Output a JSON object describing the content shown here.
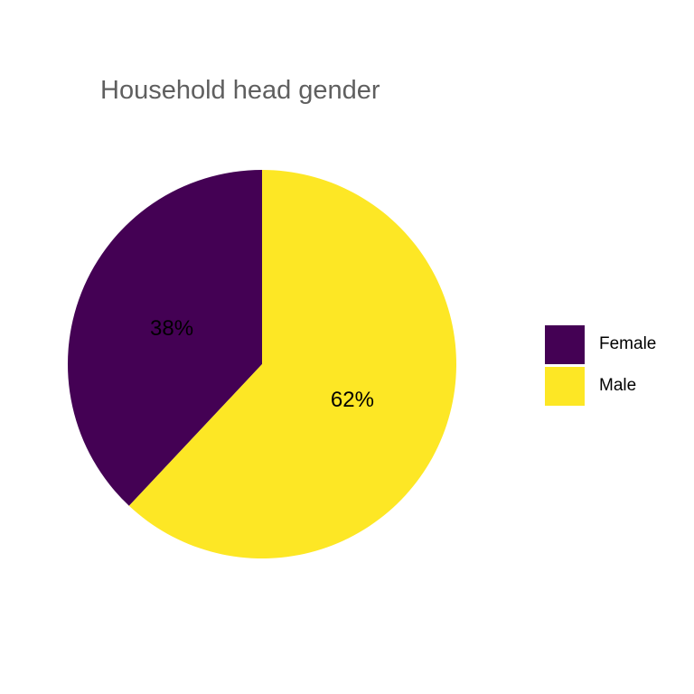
{
  "chart_data": {
    "type": "pie",
    "title": "Household head gender",
    "categories": [
      "Female",
      "Male"
    ],
    "values": [
      38,
      62
    ],
    "labels": [
      "38%",
      "62%"
    ],
    "colors": [
      "#440154",
      "#FDE725"
    ],
    "start": "12 o'clock",
    "direction": "counterclockwise",
    "legend": {
      "position": "right",
      "items": [
        {
          "label": "Female",
          "color": "#440154"
        },
        {
          "label": "Male",
          "color": "#FDE725"
        }
      ]
    }
  }
}
